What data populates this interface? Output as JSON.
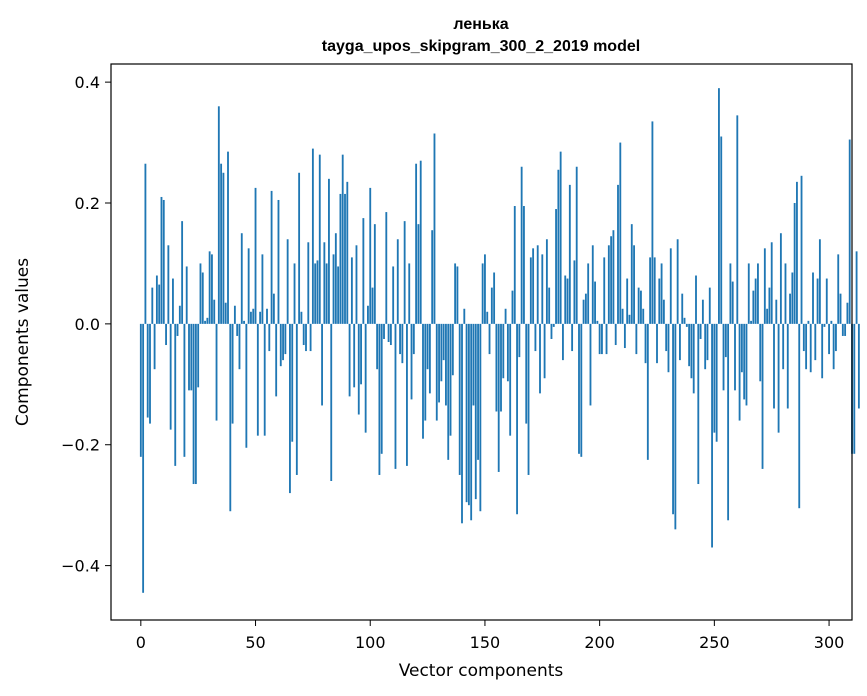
{
  "chart_data": {
    "type": "bar",
    "title": "ленька",
    "subtitle": "tayga_upos_skipgram_300_2_2019 model",
    "xlabel": "Vector components",
    "ylabel": "Components values",
    "xlim": [
      -13,
      310
    ],
    "ylim": [
      -0.49,
      0.43
    ],
    "xticks": [
      0,
      50,
      100,
      150,
      200,
      250,
      300
    ],
    "xtick_labels": [
      "0",
      "50",
      "100",
      "150",
      "200",
      "250",
      "300"
    ],
    "yticks": [
      -0.4,
      -0.2,
      0.0,
      0.2,
      0.4
    ],
    "ytick_labels": [
      "−0.4",
      "−0.2",
      "0.0",
      "0.2",
      "0.4"
    ],
    "bar_color": "#1f77b4",
    "grid": false,
    "x_start": 0,
    "values": [
      -0.22,
      -0.445,
      0.265,
      -0.155,
      -0.165,
      0.06,
      -0.075,
      0.08,
      0.065,
      0.21,
      0.205,
      -0.035,
      0.13,
      -0.175,
      0.075,
      -0.235,
      -0.02,
      0.03,
      0.17,
      -0.22,
      0.095,
      -0.11,
      -0.11,
      -0.265,
      -0.265,
      -0.105,
      0.1,
      0.085,
      0.005,
      0.01,
      0.12,
      0.115,
      0.04,
      -0.16,
      0.36,
      0.265,
      0.25,
      0.035,
      0.285,
      -0.31,
      -0.165,
      0.03,
      -0.02,
      -0.075,
      0.15,
      0.005,
      -0.205,
      0.125,
      0.02,
      0.025,
      0.225,
      -0.185,
      0.02,
      0.115,
      -0.185,
      0.025,
      -0.045,
      0.22,
      0.05,
      -0.12,
      0.205,
      -0.07,
      -0.06,
      -0.05,
      0.14,
      -0.28,
      -0.195,
      0.1,
      -0.25,
      0.25,
      0.02,
      -0.035,
      -0.045,
      0.135,
      -0.045,
      0.29,
      0.1,
      0.105,
      0.28,
      -0.135,
      0.135,
      0.1,
      0.24,
      -0.26,
      0.115,
      0.15,
      0.095,
      0.215,
      0.28,
      0.215,
      0.235,
      -0.12,
      0.11,
      -0.105,
      0.13,
      -0.15,
      -0.1,
      0.175,
      -0.18,
      0.03,
      0.225,
      0.06,
      0.165,
      -0.075,
      -0.25,
      -0.215,
      -0.025,
      0.185,
      -0.03,
      -0.035,
      0.095,
      -0.24,
      0.14,
      -0.05,
      -0.065,
      0.17,
      -0.235,
      0.1,
      -0.125,
      -0.05,
      0.265,
      0.165,
      0.27,
      -0.19,
      -0.16,
      -0.075,
      -0.115,
      0.155,
      0.315,
      -0.16,
      -0.13,
      -0.095,
      -0.06,
      -0.135,
      -0.225,
      -0.185,
      -0.085,
      0.1,
      0.095,
      -0.25,
      -0.33,
      0.025,
      -0.295,
      -0.3,
      -0.325,
      -0.135,
      -0.29,
      -0.225,
      -0.31,
      0.1,
      0.115,
      0.02,
      -0.05,
      0.06,
      0.085,
      -0.145,
      -0.245,
      -0.145,
      -0.09,
      0.025,
      -0.095,
      -0.185,
      0.055,
      0.195,
      -0.315,
      -0.055,
      0.26,
      0.195,
      -0.165,
      -0.25,
      0.11,
      0.125,
      -0.045,
      0.13,
      -0.115,
      0.115,
      -0.09,
      0.14,
      0.06,
      -0.025,
      -0.005,
      0.19,
      0.255,
      0.285,
      -0.06,
      0.08,
      0.075,
      0.23,
      -0.045,
      0.105,
      0.26,
      -0.215,
      -0.22,
      0.04,
      0.05,
      0.1,
      -0.135,
      0.13,
      0.07,
      0.005,
      -0.05,
      -0.05,
      0.11,
      -0.05,
      0.13,
      0.145,
      0.155,
      -0.035,
      0.23,
      0.3,
      0.025,
      -0.04,
      0.075,
      0.015,
      0.165,
      0.13,
      -0.05,
      0.06,
      0.055,
      0.025,
      -0.065,
      -0.225,
      0.11,
      0.335,
      0.11,
      -0.065,
      0.075,
      0.1,
      0.04,
      -0.045,
      -0.08,
      0.125,
      -0.315,
      -0.34,
      0.14,
      -0.06,
      0.05,
      0.01,
      -0.005,
      -0.07,
      -0.09,
      -0.115,
      0.08,
      -0.265,
      -0.025,
      0.04,
      -0.075,
      -0.06,
      0.06,
      -0.37,
      -0.18,
      -0.195,
      0.39,
      0.31,
      -0.11,
      -0.055,
      -0.325,
      0.1,
      0.07,
      -0.11,
      0.345,
      -0.16,
      -0.08,
      -0.125,
      -0.135,
      0.1,
      0.005,
      0.055,
      0.075,
      0.1,
      -0.095,
      -0.24,
      0.125,
      0.025,
      0.06,
      0.135,
      -0.14,
      0.04,
      -0.18,
      0.15,
      -0.075,
      0.1,
      -0.14,
      0.05,
      0.085,
      0.2,
      0.235,
      -0.305,
      0.245,
      -0.045,
      -0.075,
      0.005,
      -0.08,
      0.085,
      -0.06,
      0.075,
      0.14,
      -0.09,
      -0.005,
      0.075,
      -0.05,
      0.005,
      -0.075,
      -0.045,
      0.115,
      0.05,
      -0.02,
      -0.02,
      0.035,
      0.305,
      -0.215,
      -0.215,
      0.12,
      -0.14
    ]
  }
}
